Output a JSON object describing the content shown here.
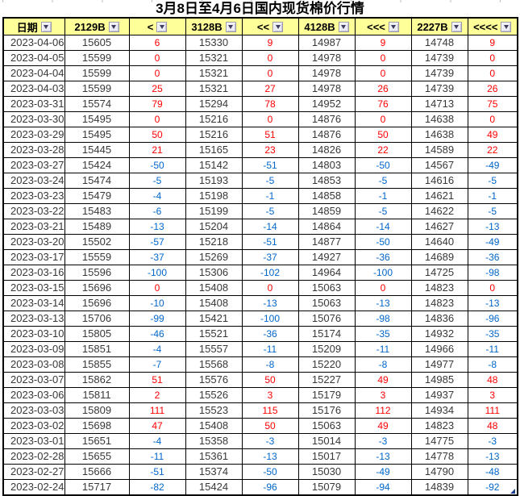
{
  "title": "3月8日至4月6日国内现货棉价行情",
  "colors": {
    "positive_change": "#FF0000",
    "negative_change": "#0066CC",
    "header_background": "#FFFF99",
    "grid_border": "#000000",
    "value_text": "#383838"
  },
  "icons": {
    "filter_dropdown": "triangle-down",
    "fill_handle": "corner-triangle"
  },
  "table": {
    "columns": [
      {
        "key": "date",
        "label": "日期"
      },
      {
        "key": "p2129",
        "label": "2129B"
      },
      {
        "key": "c2129",
        "label": "<"
      },
      {
        "key": "p3128",
        "label": "3128B"
      },
      {
        "key": "c3128",
        "label": "<<"
      },
      {
        "key": "p4128",
        "label": "4128B"
      },
      {
        "key": "c4128",
        "label": "<<<"
      },
      {
        "key": "p2227",
        "label": "2227B"
      },
      {
        "key": "c2227",
        "label": "<<<<"
      }
    ],
    "rows": [
      {
        "cells": [
          "2023-04-06",
          "15605",
          "6",
          "15330",
          "9",
          "14987",
          "9",
          "14748",
          "9"
        ]
      },
      {
        "cells": [
          "2023-04-05",
          "15599",
          "0",
          "15321",
          "0",
          "14978",
          "0",
          "14739",
          "0"
        ]
      },
      {
        "cells": [
          "2023-04-04",
          "15599",
          "0",
          "15321",
          "0",
          "14978",
          "0",
          "14739",
          "0"
        ]
      },
      {
        "cells": [
          "2023-04-03",
          "15599",
          "25",
          "15321",
          "27",
          "14978",
          "26",
          "14739",
          "26"
        ]
      },
      {
        "cells": [
          "2023-03-31",
          "15574",
          "79",
          "15294",
          "78",
          "14952",
          "76",
          "14713",
          "75"
        ]
      },
      {
        "cells": [
          "2023-03-30",
          "15495",
          "0",
          "15216",
          "0",
          "14876",
          "0",
          "14638",
          "0"
        ]
      },
      {
        "cells": [
          "2023-03-29",
          "15495",
          "50",
          "15216",
          "51",
          "14876",
          "50",
          "14638",
          "49"
        ]
      },
      {
        "cells": [
          "2023-03-28",
          "15445",
          "21",
          "15165",
          "23",
          "14826",
          "22",
          "14589",
          "22"
        ]
      },
      {
        "cells": [
          "2023-03-27",
          "15424",
          "-50",
          "15142",
          "-51",
          "14803",
          "-50",
          "14567",
          "-49"
        ]
      },
      {
        "cells": [
          "2023-03-24",
          "15474",
          "-5",
          "15193",
          "-5",
          "14853",
          "-5",
          "14616",
          "-5"
        ]
      },
      {
        "cells": [
          "2023-03-23",
          "15479",
          "-4",
          "15198",
          "-1",
          "14858",
          "-1",
          "14621",
          "-1"
        ]
      },
      {
        "cells": [
          "2023-03-22",
          "15483",
          "-6",
          "15199",
          "-5",
          "14859",
          "-5",
          "14622",
          "-5"
        ]
      },
      {
        "cells": [
          "2023-03-21",
          "15489",
          "-13",
          "15204",
          "-14",
          "14864",
          "-14",
          "14627",
          "-13"
        ]
      },
      {
        "cells": [
          "2023-03-20",
          "15502",
          "-57",
          "15218",
          "-51",
          "14877",
          "-50",
          "14640",
          "-49"
        ]
      },
      {
        "cells": [
          "2023-03-17",
          "15559",
          "-37",
          "15269",
          "-37",
          "14927",
          "-36",
          "14689",
          "-36"
        ]
      },
      {
        "cells": [
          "2023-03-16",
          "15596",
          "-100",
          "15306",
          "-102",
          "14964",
          "-100",
          "14725",
          "-98"
        ]
      },
      {
        "cells": [
          "2023-03-15",
          "15696",
          "0",
          "15408",
          "0",
          "15063",
          "0",
          "14823",
          "0"
        ]
      },
      {
        "cells": [
          "2023-03-14",
          "15696",
          "-10",
          "15408",
          "-13",
          "15063",
          "-13",
          "14823",
          "-13"
        ]
      },
      {
        "cells": [
          "2023-03-13",
          "15706",
          "-99",
          "15421",
          "-100",
          "15076",
          "-98",
          "14836",
          "-96"
        ]
      },
      {
        "cells": [
          "2023-03-10",
          "15805",
          "-46",
          "15521",
          "-36",
          "15174",
          "-35",
          "14932",
          "-35"
        ]
      },
      {
        "cells": [
          "2023-03-09",
          "15851",
          "-4",
          "15557",
          "-11",
          "15209",
          "-11",
          "14966",
          "-11"
        ]
      },
      {
        "cells": [
          "2023-03-08",
          "15855",
          "-7",
          "15568",
          "-8",
          "15220",
          "-8",
          "14977",
          "-8"
        ]
      },
      {
        "cells": [
          "2023-03-07",
          "15862",
          "51",
          "15576",
          "50",
          "15227",
          "49",
          "14985",
          "48"
        ]
      },
      {
        "cells": [
          "2023-03-06",
          "15811",
          "2",
          "15526",
          "3",
          "15179",
          "3",
          "14937",
          "3"
        ]
      },
      {
        "cells": [
          "2023-03-03",
          "15809",
          "111",
          "15523",
          "115",
          "15176",
          "112",
          "14934",
          "111"
        ]
      },
      {
        "cells": [
          "2023-03-02",
          "15698",
          "47",
          "15408",
          "50",
          "15063",
          "49",
          "14823",
          "48"
        ]
      },
      {
        "cells": [
          "2023-03-01",
          "15651",
          "-4",
          "15358",
          "-3",
          "15014",
          "-3",
          "14775",
          "-3"
        ]
      },
      {
        "cells": [
          "2023-02-28",
          "15655",
          "-11",
          "15361",
          "-13",
          "15017",
          "-13",
          "14778",
          "-13"
        ]
      },
      {
        "cells": [
          "2023-02-27",
          "15666",
          "-51",
          "15374",
          "-50",
          "15030",
          "-49",
          "14790",
          "-48"
        ]
      },
      {
        "cells": [
          "2023-02-24",
          "15717",
          "-82",
          "15424",
          "-96",
          "15079",
          "-94",
          "14839",
          "-92"
        ]
      }
    ]
  }
}
